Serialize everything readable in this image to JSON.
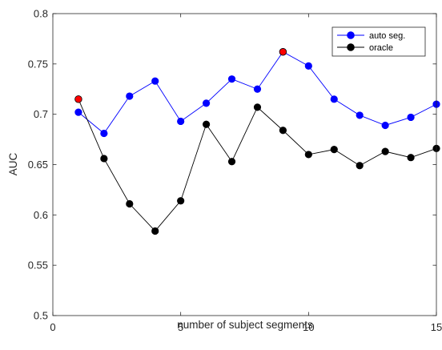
{
  "chart_data": {
    "type": "line",
    "title": "",
    "xlabel": "number of subject segments",
    "ylabel": "AUC",
    "xlim": [
      0,
      15
    ],
    "ylim": [
      0.5,
      0.8
    ],
    "xticks": [
      0,
      5,
      10,
      15
    ],
    "yticks": [
      0.5,
      0.55,
      0.6,
      0.65,
      0.7,
      0.75,
      0.8
    ],
    "xtick_labels": [
      "0",
      "5",
      "10",
      "15"
    ],
    "ytick_labels": [
      "0.5",
      "0.55",
      "0.6",
      "0.65",
      "0.7",
      "0.75",
      "0.8"
    ],
    "grid": false,
    "legend_position": "top-right",
    "x": [
      1,
      2,
      3,
      4,
      5,
      6,
      7,
      8,
      9,
      10,
      11,
      12,
      13,
      14,
      15
    ],
    "series": [
      {
        "name": "auto seg.",
        "color": "#0000ff",
        "marker_color": "#0000ff",
        "values": [
          0.702,
          0.681,
          0.718,
          0.733,
          0.693,
          0.711,
          0.735,
          0.725,
          0.762,
          0.748,
          0.715,
          0.699,
          0.689,
          0.697,
          0.71
        ]
      },
      {
        "name": "oracle",
        "color": "#000000",
        "marker_color": "#000000",
        "values": [
          0.715,
          0.656,
          0.611,
          0.584,
          0.614,
          0.69,
          0.653,
          0.707,
          0.684,
          0.66,
          0.665,
          0.649,
          0.663,
          0.657,
          0.666
        ]
      }
    ],
    "highlights": [
      {
        "x": 1,
        "y": 0.715,
        "color": "#ff0000"
      },
      {
        "x": 9,
        "y": 0.762,
        "color": "#ff0000"
      }
    ]
  }
}
